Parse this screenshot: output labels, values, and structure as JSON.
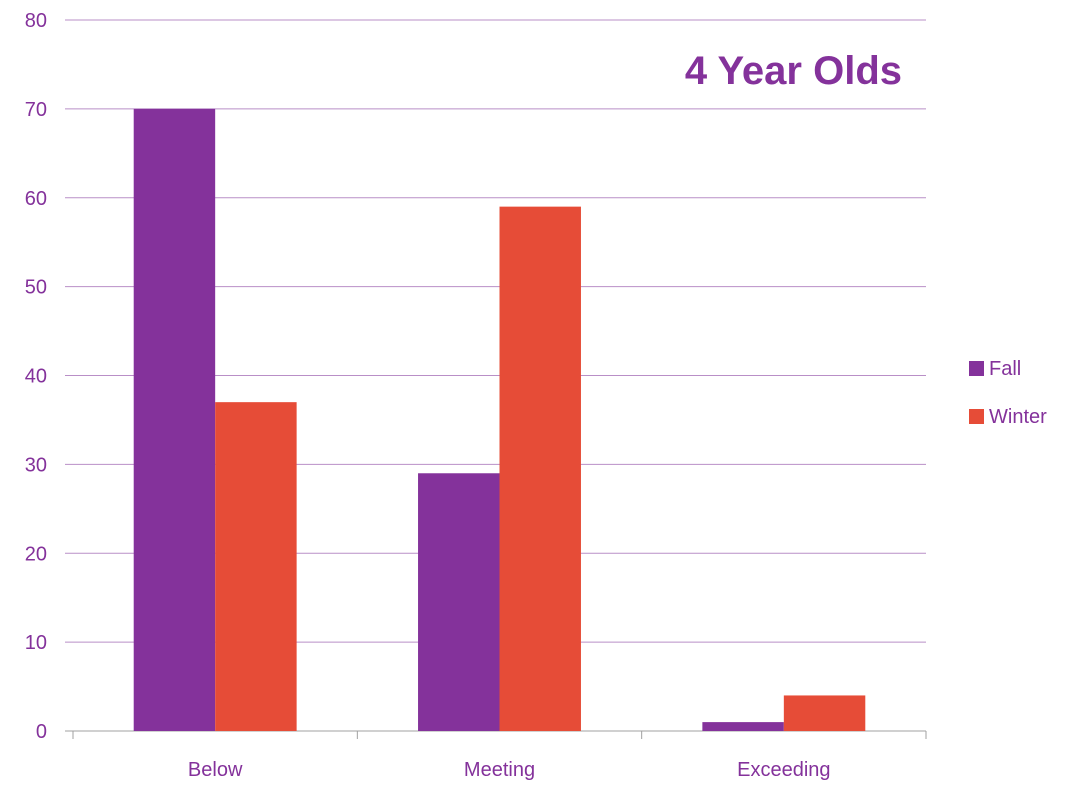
{
  "chart_data": {
    "type": "bar",
    "title": "4 Year Olds",
    "categories": [
      "Below",
      "Meeting",
      "Exceeding"
    ],
    "series": [
      {
        "name": "Fall",
        "color": "#84329b",
        "values": [
          70,
          29,
          1
        ]
      },
      {
        "name": "Winter",
        "color": "#e64c37",
        "values": [
          37,
          59,
          4
        ]
      }
    ],
    "xlabel": "",
    "ylabel": "",
    "ylim": [
      0,
      80
    ],
    "yticks": [
      0,
      10,
      20,
      30,
      40,
      50,
      60,
      70,
      80
    ],
    "grid": true,
    "legend_position": "right",
    "colors": {
      "text": "#84329b",
      "title": "#84329b",
      "grid": "#b98fc7",
      "axis": "#a0a0a0"
    }
  }
}
